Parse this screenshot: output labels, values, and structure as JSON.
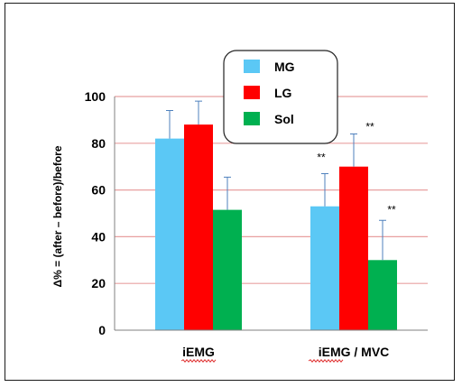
{
  "chart_data": {
    "type": "bar",
    "title": "",
    "xlabel": "",
    "ylabel": "Δ% = (after – before)/before",
    "ylim": [
      0,
      100
    ],
    "yticks": [
      0,
      20,
      40,
      60,
      80,
      100
    ],
    "grid": true,
    "legend_position": "top-center",
    "categories": [
      "iEMG",
      "iEMG / MVC"
    ],
    "series": [
      {
        "name": "MG",
        "color": "#5BC8F5",
        "values": [
          82,
          53
        ],
        "errors": [
          12,
          14
        ]
      },
      {
        "name": "LG",
        "color": "#FF0000",
        "values": [
          88,
          70
        ],
        "errors": [
          10,
          14
        ]
      },
      {
        "name": "Sol",
        "color": "#00B050",
        "values": [
          51.5,
          30
        ],
        "errors": [
          14,
          17
        ]
      }
    ],
    "annotations": [
      {
        "category": 1,
        "series": 0,
        "text": "**"
      },
      {
        "category": 1,
        "series": 1,
        "text": "**"
      },
      {
        "category": 1,
        "series": 2,
        "text": "**"
      }
    ],
    "gridline_color": "#E8A0A0"
  }
}
